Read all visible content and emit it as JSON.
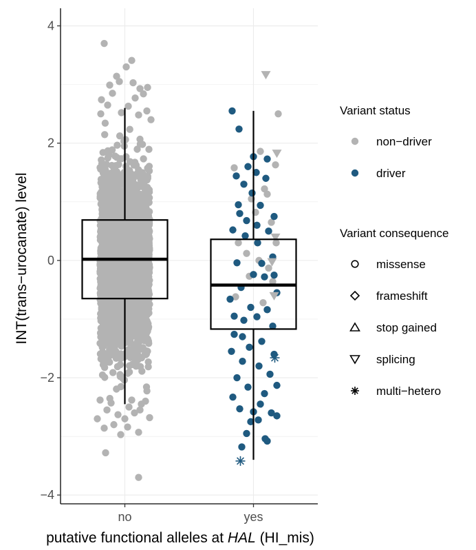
{
  "chart_data": {
    "type": "scatter",
    "subtype": "jittered points over boxplot",
    "xlabel": {
      "prefix": "putative functional alleles at ",
      "italic": "HAL",
      "suffix": " (HI_mis)"
    },
    "ylabel": "INT(trans−urocanate) level",
    "categories": [
      "no",
      "yes"
    ],
    "ylim": [
      -4.15,
      4.3
    ],
    "y_ticks": [
      -4,
      -2,
      0,
      2,
      4
    ],
    "y_tick_labels": [
      "−4",
      "−2",
      "0",
      "2",
      "4"
    ],
    "grid": true,
    "colors": {
      "non_driver": "#b3b3b3",
      "driver": "#1f5a80",
      "box": "#000000",
      "grid": "#ebebeb"
    },
    "boxes": [
      {
        "category": "no",
        "q1": -0.65,
        "median": 0.02,
        "q3": 0.69,
        "whisker_low": -2.45,
        "whisker_high": 2.6
      },
      {
        "category": "yes",
        "q1": -1.17,
        "median": -0.42,
        "q3": 0.36,
        "whisker_low": -3.4,
        "whisker_high": 2.55
      }
    ],
    "series": [
      {
        "name": "non−driver",
        "category": "no",
        "shape": "circle",
        "color": "#b3b3b3",
        "points": [
          {
            "dx": -0.3,
            "y": 3.7
          },
          {
            "dx": 0.1,
            "y": 3.41
          },
          {
            "dx": -0.12,
            "y": 3.14
          },
          {
            "dx": 0.02,
            "y": 3.3
          },
          {
            "dx": -0.08,
            "y": 3.05
          },
          {
            "dx": 0.33,
            "y": 2.95
          },
          {
            "dx": 0.27,
            "y": 2.84
          },
          {
            "dx": 0.15,
            "y": 2.77
          },
          {
            "dx": -0.34,
            "y": 2.74
          },
          {
            "dx": 0.22,
            "y": 2.93
          },
          {
            "dx": -0.22,
            "y": 2.99
          },
          {
            "dx": 0.05,
            "y": 2.63
          },
          {
            "dx": -0.25,
            "y": 2.65
          },
          {
            "dx": 0.32,
            "y": 2.55
          },
          {
            "dx": -0.35,
            "y": 2.5
          },
          {
            "dx": 0.38,
            "y": 2.4
          },
          {
            "dx": 0.2,
            "y": 2.48
          },
          {
            "dx": -0.05,
            "y": 2.52
          },
          {
            "dx": 0.12,
            "y": 3.03
          },
          {
            "dx": -0.18,
            "y": 2.85
          },
          {
            "dx": -0.4,
            "y": -2.7
          },
          {
            "dx": -0.3,
            "y": -2.86
          },
          {
            "dx": -0.16,
            "y": -2.8
          },
          {
            "dx": -0.06,
            "y": -2.97
          },
          {
            "dx": 0.04,
            "y": -2.84
          },
          {
            "dx": 0.14,
            "y": -2.6
          },
          {
            "dx": 0.22,
            "y": -2.55
          },
          {
            "dx": 0.24,
            "y": -2.45
          },
          {
            "dx": 0.2,
            "y": -2.93
          },
          {
            "dx": 0.36,
            "y": -2.68
          },
          {
            "dx": -0.26,
            "y": -2.55
          },
          {
            "dx": -0.1,
            "y": -2.63
          },
          {
            "dx": 0.06,
            "y": -2.5
          },
          {
            "dx": -0.28,
            "y": -3.28
          },
          {
            "dx": 0.2,
            "y": -3.7
          },
          {
            "dx": -0.36,
            "y": -2.38
          },
          {
            "dx": 0.3,
            "y": -2.4
          },
          {
            "dx": 0.0,
            "y": -2.7
          },
          {
            "dx": -0.2,
            "y": -2.43
          },
          {
            "dx": 0.1,
            "y": -2.38
          }
        ]
      },
      {
        "name": "non−driver",
        "category": "yes",
        "shape": "circle",
        "color": "#b3b3b3",
        "points": [
          {
            "dx": 0.36,
            "y": 2.5
          },
          {
            "dx": 0.1,
            "y": 1.86
          },
          {
            "dx": 0.32,
            "y": 1.63
          },
          {
            "dx": -0.28,
            "y": 1.58
          },
          {
            "dx": 0.16,
            "y": 1.22
          },
          {
            "dx": -0.22,
            "y": 0.3
          },
          {
            "dx": 0.03,
            "y": 0.82
          },
          {
            "dx": 0.26,
            "y": 0.65
          },
          {
            "dx": -0.1,
            "y": 0.12
          },
          {
            "dx": 0.22,
            "y": -0.13
          },
          {
            "dx": -0.06,
            "y": -0.27
          },
          {
            "dx": 0.28,
            "y": -0.36
          },
          {
            "dx": 0.08,
            "y": 0.0
          },
          {
            "dx": -0.26,
            "y": -0.62
          },
          {
            "dx": 0.14,
            "y": -0.72
          },
          {
            "dx": 0.33,
            "y": 0.3
          },
          {
            "dx": -0.03,
            "y": 1.05
          },
          {
            "dx": 0.2,
            "y": 1.13
          }
        ]
      },
      {
        "name": "driver",
        "category": "yes",
        "shape": "circle",
        "color": "#1f5a80",
        "points": [
          {
            "dx": -0.31,
            "y": 2.55
          },
          {
            "dx": -0.21,
            "y": 2.24
          },
          {
            "dx": 0.0,
            "y": 1.77
          },
          {
            "dx": 0.2,
            "y": 1.73
          },
          {
            "dx": -0.08,
            "y": 1.6
          },
          {
            "dx": 0.04,
            "y": 1.5
          },
          {
            "dx": -0.25,
            "y": 1.44
          },
          {
            "dx": -0.14,
            "y": 1.3
          },
          {
            "dx": -0.2,
            "y": 0.8
          },
          {
            "dx": -0.02,
            "y": 1.15
          },
          {
            "dx": 0.1,
            "y": 0.94
          },
          {
            "dx": 0.3,
            "y": 0.75
          },
          {
            "dx": 0.22,
            "y": 0.5
          },
          {
            "dx": -0.3,
            "y": 0.52
          },
          {
            "dx": -0.12,
            "y": 0.42
          },
          {
            "dx": 0.06,
            "y": 0.3
          },
          {
            "dx": 0.28,
            "y": 0.06
          },
          {
            "dx": -0.24,
            "y": -0.04
          },
          {
            "dx": 0.0,
            "y": -0.24
          },
          {
            "dx": 0.16,
            "y": -0.28
          },
          {
            "dx": -0.18,
            "y": -0.46
          },
          {
            "dx": 0.34,
            "y": -0.55
          },
          {
            "dx": -0.34,
            "y": -0.66
          },
          {
            "dx": -0.04,
            "y": -0.8
          },
          {
            "dx": 0.2,
            "y": -0.84
          },
          {
            "dx": 0.05,
            "y": -0.96
          },
          {
            "dx": -0.14,
            "y": -1.02
          },
          {
            "dx": 0.28,
            "y": -1.12
          },
          {
            "dx": -0.28,
            "y": -1.26
          },
          {
            "dx": 0.12,
            "y": -1.38
          },
          {
            "dx": -0.06,
            "y": -1.48
          },
          {
            "dx": -0.32,
            "y": -1.55
          },
          {
            "dx": 0.3,
            "y": -1.6
          },
          {
            "dx": -0.16,
            "y": -1.72
          },
          {
            "dx": 0.08,
            "y": -1.8
          },
          {
            "dx": 0.24,
            "y": -1.94
          },
          {
            "dx": -0.24,
            "y": -2.0
          },
          {
            "dx": 0.34,
            "y": -2.13
          },
          {
            "dx": -0.08,
            "y": -2.16
          },
          {
            "dx": 0.16,
            "y": -2.27
          },
          {
            "dx": -0.3,
            "y": -2.33
          },
          {
            "dx": 0.1,
            "y": -2.45
          },
          {
            "dx": -0.2,
            "y": -2.53
          },
          {
            "dx": 0.26,
            "y": -2.6
          },
          {
            "dx": 0.0,
            "y": -2.58
          },
          {
            "dx": 0.34,
            "y": -2.65
          },
          {
            "dx": -0.04,
            "y": -2.75
          },
          {
            "dx": 0.07,
            "y": -2.72
          },
          {
            "dx": -0.1,
            "y": -2.95
          },
          {
            "dx": -0.17,
            "y": -3.18
          },
          {
            "dx": 0.17,
            "y": -3.04
          },
          {
            "dx": 0.2,
            "y": -3.08
          },
          {
            "dx": 0.12,
            "y": -0.05
          },
          {
            "dx": -0.22,
            "y": 0.95
          },
          {
            "dx": 0.18,
            "y": 1.4
          },
          {
            "dx": -0.1,
            "y": 0.68
          },
          {
            "dx": 0.3,
            "y": -0.25
          },
          {
            "dx": -0.28,
            "y": -0.95
          },
          {
            "dx": 0.05,
            "y": 0.6
          },
          {
            "dx": -0.16,
            "y": -1.3
          }
        ]
      },
      {
        "name": "driver",
        "category": "yes",
        "shape": "asterisk",
        "color": "#1f5a80",
        "points": [
          {
            "dx": -0.19,
            "y": -3.42
          },
          {
            "dx": 0.31,
            "y": -1.66
          }
        ]
      },
      {
        "name": "non−driver",
        "category": "yes",
        "shape": "triangle-down",
        "color": "#b3b3b3",
        "points": [
          {
            "dx": 0.18,
            "y": 3.17
          },
          {
            "dx": 0.34,
            "y": 1.83
          },
          {
            "dx": 0.32,
            "y": 0.4
          },
          {
            "dx": 0.27,
            "y": -0.02
          },
          {
            "dx": 0.3,
            "y": -0.6
          }
        ]
      }
    ],
    "legend": {
      "placement": "right",
      "groups": [
        {
          "title": "Variant status",
          "items": [
            {
              "label": "non−driver",
              "symbol": "circle",
              "color": "#b3b3b3"
            },
            {
              "label": "driver",
              "symbol": "circle",
              "color": "#1f5a80"
            }
          ]
        },
        {
          "title": "Variant consequence",
          "items": [
            {
              "label": "missense",
              "symbol": "open-circle"
            },
            {
              "label": "frameshift",
              "symbol": "open-diamond"
            },
            {
              "label": "stop gained",
              "symbol": "open-triangle-up"
            },
            {
              "label": "splicing",
              "symbol": "open-triangle-down"
            },
            {
              "label": "multi−hetero",
              "symbol": "asterisk"
            }
          ]
        }
      ]
    }
  }
}
